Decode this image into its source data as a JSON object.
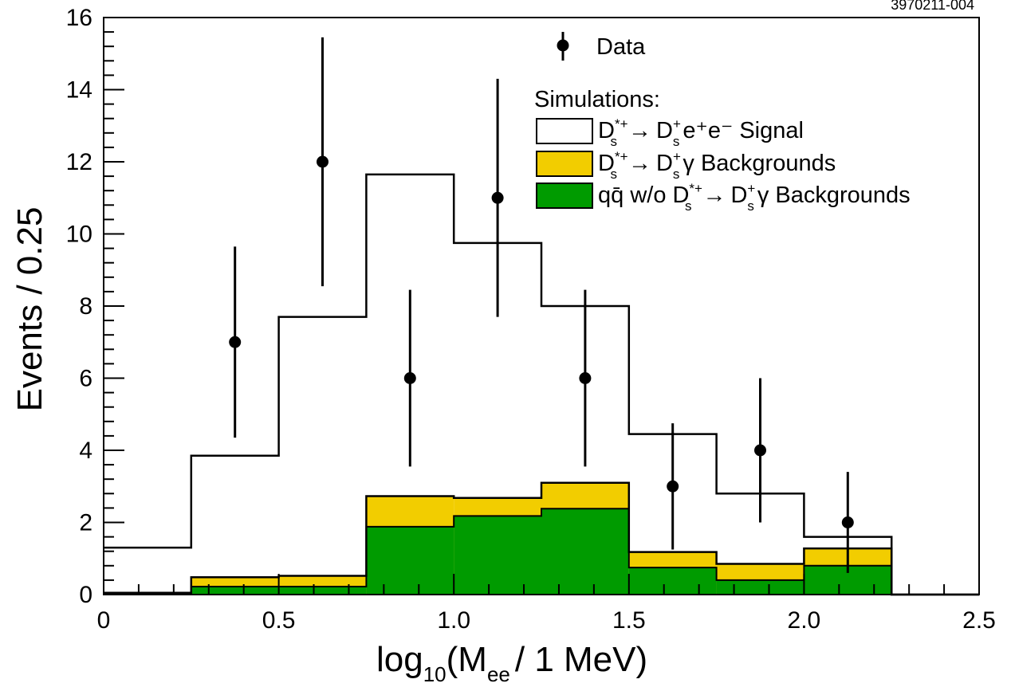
{
  "chart_data": {
    "type": "histogram",
    "corner_id": "3970211-004",
    "xlabel": {
      "main": "log",
      "sub": "10",
      "paren_open": "(M",
      "sub2": "ee",
      "rest": "/ 1 MeV)"
    },
    "ylabel": "Events / 0.25",
    "xlim": [
      0,
      2.5
    ],
    "ylim": [
      0,
      16
    ],
    "x_ticks": [
      0,
      0.5,
      1.0,
      1.5,
      2.0,
      2.5
    ],
    "x_tick_labels": [
      "0",
      "0.5",
      "1.0",
      "1.5",
      "2.0",
      "2.5"
    ],
    "y_ticks": [
      0,
      2,
      4,
      6,
      8,
      10,
      12,
      14,
      16
    ],
    "y_tick_labels": [
      "0",
      "2",
      "4",
      "6",
      "8",
      "10",
      "12",
      "14",
      "16"
    ],
    "bin_edges": [
      0,
      0.25,
      0.5,
      0.75,
      1.0,
      1.25,
      1.5,
      1.75,
      2.0,
      2.25,
      2.5
    ],
    "series": [
      {
        "name": "D_s*+ → D_s+ e+e− Signal",
        "kind": "step-outline",
        "color": "#000000",
        "values": [
          1.3,
          3.85,
          7.7,
          11.65,
          9.75,
          8.0,
          4.45,
          2.8,
          1.6,
          0.0
        ]
      },
      {
        "name": "D_s*+ → D_s+ γ Backgrounds",
        "kind": "stacked-fill",
        "color": "#f2cd00",
        "values": [
          0.05,
          0.48,
          0.52,
          2.73,
          2.68,
          3.1,
          1.18,
          0.85,
          1.28,
          0.0
        ]
      },
      {
        "name": "qq̄ w/o D_s*+ → D_s+ γ Backgrounds",
        "kind": "stacked-fill",
        "color": "#009b00",
        "values": [
          0.0,
          0.22,
          0.22,
          1.88,
          2.18,
          2.38,
          0.75,
          0.4,
          0.8,
          0.0
        ]
      }
    ],
    "data_points": {
      "name": "Data",
      "x": [
        0.375,
        0.625,
        0.875,
        1.125,
        1.375,
        1.625,
        1.875,
        2.125
      ],
      "y": [
        7,
        12,
        6,
        11,
        6,
        3,
        4,
        2
      ],
      "err_low": [
        2.65,
        3.45,
        2.45,
        3.3,
        2.45,
        1.75,
        2.0,
        1.4
      ],
      "err_high": [
        2.65,
        3.45,
        2.45,
        3.3,
        2.45,
        1.75,
        2.0,
        1.4
      ]
    },
    "legend": {
      "data_label": "Data",
      "sim_header": "Simulations:",
      "signal": {
        "D": "D",
        "sup1": "*+",
        "sub1": "s",
        "arrow": "→",
        "D2": "D",
        "sup2": "+",
        "sub2": "s",
        "tail": "e⁺e⁻ Signal"
      },
      "bkg": {
        "D": "D",
        "sup1": "*+",
        "sub1": "s",
        "arrow": "→",
        "D2": "D",
        "sup2": "+",
        "sub2": "s",
        "tail": "γ Backgrounds"
      },
      "qq": {
        "head": "qq̄ w/o",
        "D": "D",
        "sup1": "*+",
        "sub1": "s",
        "arrow": "→",
        "D2": "D",
        "sup2": "+",
        "sub2": "s",
        "tail": "γ Backgrounds"
      }
    },
    "grid": false,
    "legend_placement": "top-right"
  }
}
